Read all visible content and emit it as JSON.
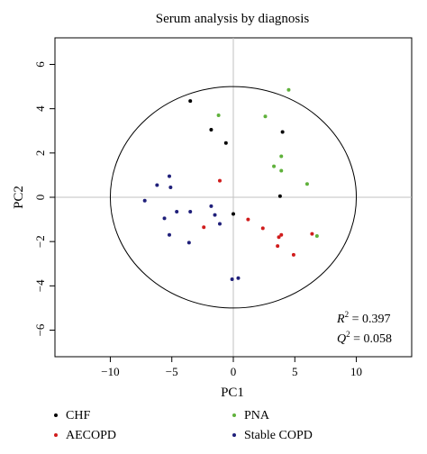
{
  "chart_data": {
    "type": "scatter",
    "title": "Serum analysis by diagnosis",
    "xlabel": "PC1",
    "ylabel": "PC2",
    "xlim": [
      -14.5,
      14.5
    ],
    "ylim": [
      -7.2,
      7.2
    ],
    "xticks": [
      -10,
      -5,
      0,
      5,
      10
    ],
    "yticks": [
      -6,
      -4,
      -2,
      0,
      2,
      4,
      6
    ],
    "grid": false,
    "reference_lines": {
      "x": 0,
      "y": 0,
      "color": "#c0c0c0"
    },
    "ellipse": {
      "center": [
        0,
        0
      ],
      "rx": 10,
      "ry": 5
    },
    "annotations": {
      "r2_label": "R",
      "r2_value": " = 0.397",
      "q2_label": "Q",
      "q2_value": " = 0.058",
      "superscript": "2"
    },
    "legend_position": "bottom",
    "series": [
      {
        "name": "CHF",
        "color": "#000000",
        "points": [
          [
            -3.5,
            4.35
          ],
          [
            -1.8,
            3.05
          ],
          [
            -0.6,
            2.45
          ],
          [
            4.0,
            2.95
          ],
          [
            3.8,
            0.05
          ],
          [
            0.0,
            -0.75
          ]
        ]
      },
      {
        "name": "PNA",
        "color": "#5fb13b",
        "points": [
          [
            4.5,
            4.85
          ],
          [
            2.6,
            3.65
          ],
          [
            -1.2,
            3.7
          ],
          [
            3.9,
            1.85
          ],
          [
            3.3,
            1.4
          ],
          [
            3.9,
            1.2
          ],
          [
            6.0,
            0.6
          ],
          [
            6.8,
            -1.75
          ]
        ]
      },
      {
        "name": "AECOPD",
        "color": "#d01c1c",
        "points": [
          [
            -1.1,
            0.75
          ],
          [
            1.2,
            -1.0
          ],
          [
            2.4,
            -1.4
          ],
          [
            -2.4,
            -1.35
          ],
          [
            3.7,
            -1.8
          ],
          [
            3.9,
            -1.7
          ],
          [
            3.6,
            -2.2
          ],
          [
            6.4,
            -1.65
          ],
          [
            4.9,
            -2.6
          ]
        ]
      },
      {
        "name": "Stable COPD",
        "color": "#1f1f7a",
        "points": [
          [
            -5.2,
            0.95
          ],
          [
            -6.2,
            0.55
          ],
          [
            -5.1,
            0.45
          ],
          [
            -7.2,
            -0.15
          ],
          [
            -1.8,
            -0.4
          ],
          [
            -4.6,
            -0.65
          ],
          [
            -3.5,
            -0.65
          ],
          [
            -5.6,
            -0.95
          ],
          [
            -1.5,
            -0.8
          ],
          [
            -1.1,
            -1.2
          ],
          [
            -5.2,
            -1.7
          ],
          [
            -3.6,
            -2.05
          ],
          [
            -0.1,
            -3.7
          ],
          [
            0.4,
            -3.65
          ]
        ]
      }
    ]
  }
}
